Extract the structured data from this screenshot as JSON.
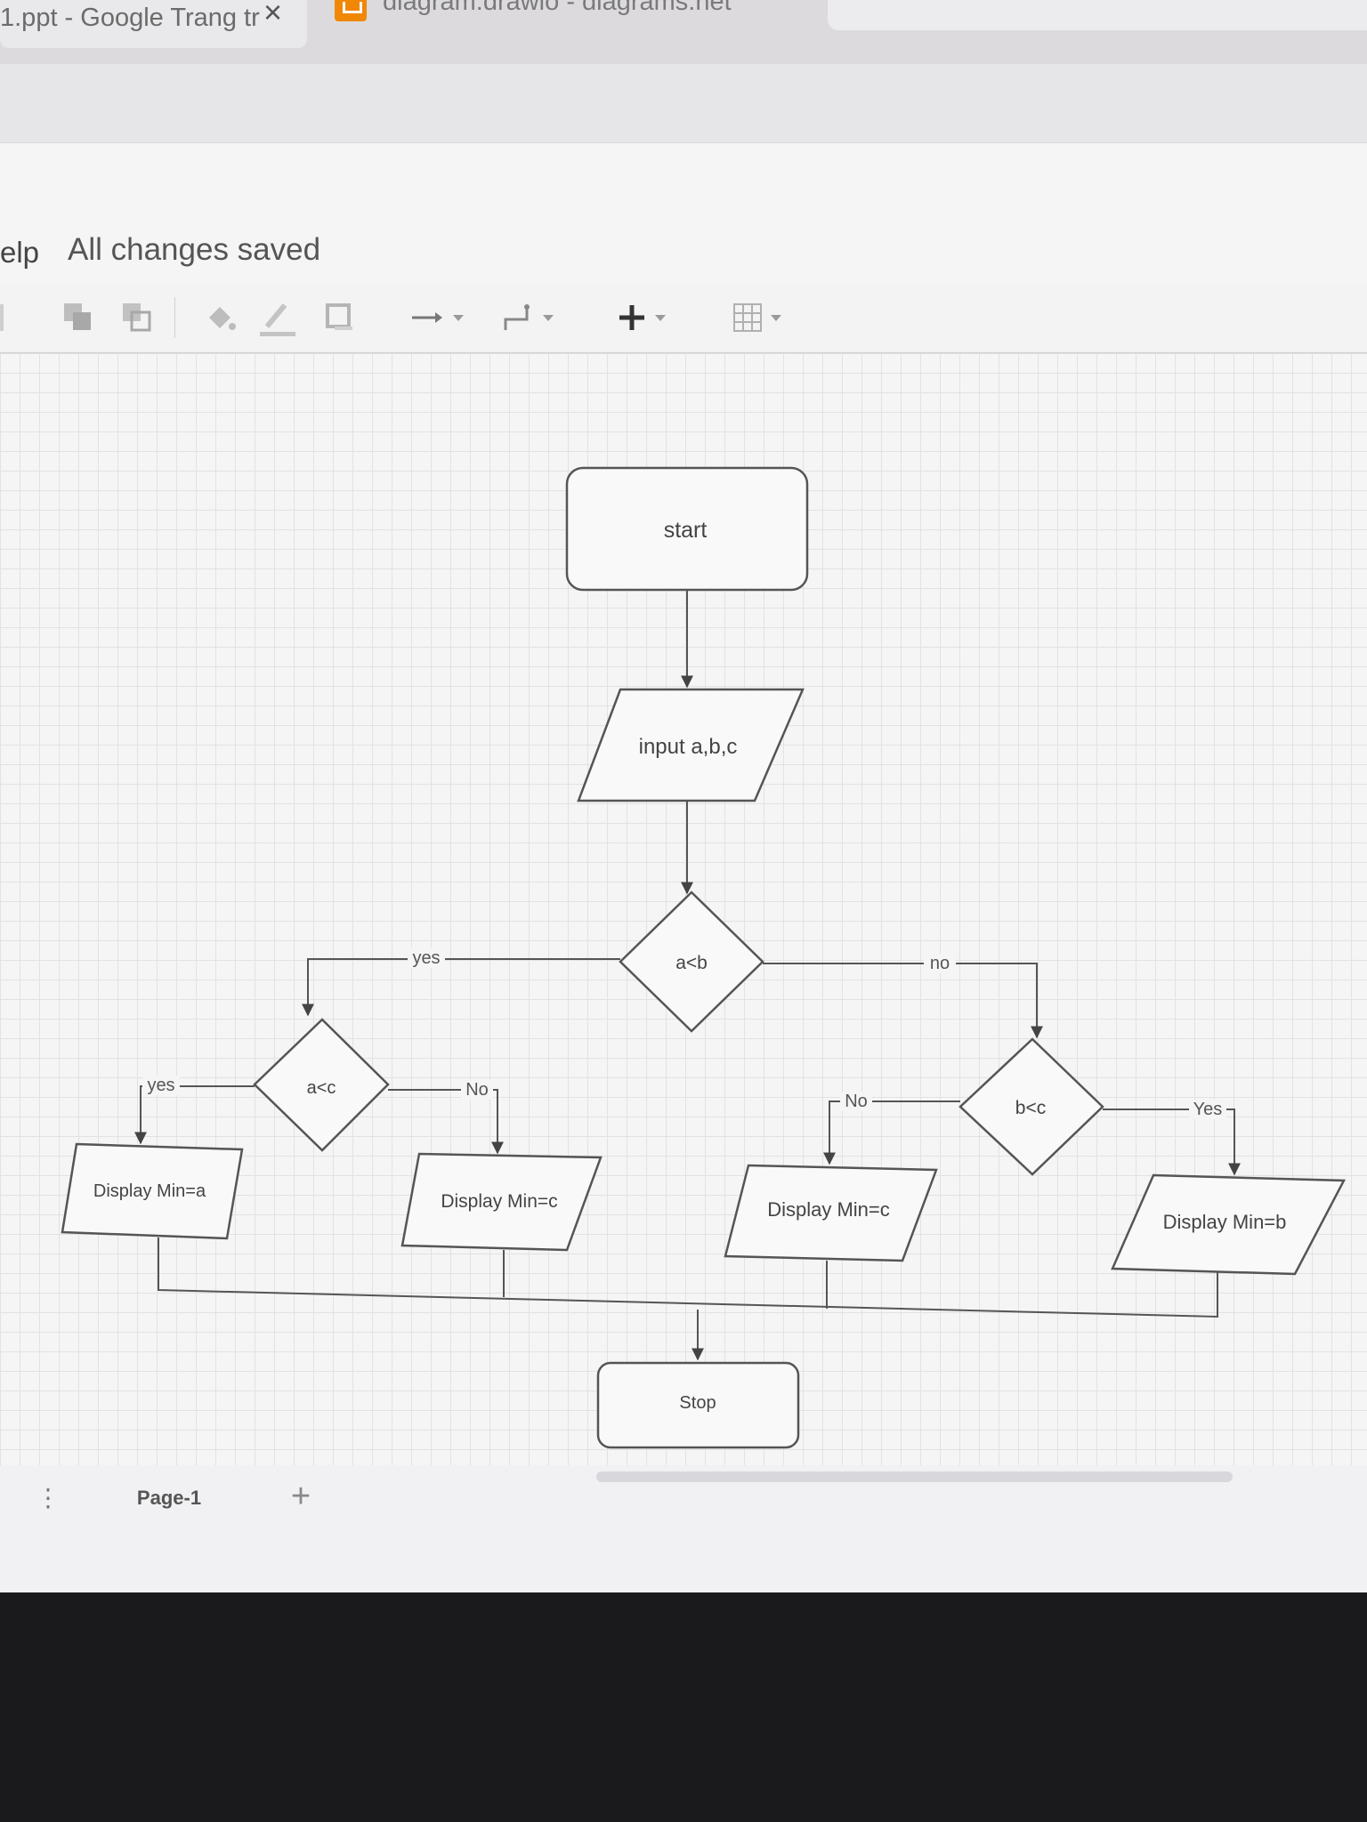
{
  "browser": {
    "tabs": [
      {
        "title": "1.ppt - Google Trang tr",
        "close_icon": "close-icon"
      },
      {
        "title": "diagram.drawio - diagrams.net",
        "favicon": "drawio-icon"
      }
    ]
  },
  "menubar": {
    "help_label": "elp",
    "save_status": "All changes saved"
  },
  "toolbar": {
    "icons": [
      "duplicate-icon",
      "to-back-icon",
      "fill-color-icon",
      "line-color-icon",
      "shadow-icon",
      "connection-arrow-icon",
      "waypoints-icon",
      "insert-icon",
      "table-icon"
    ]
  },
  "diagram": {
    "nodes": {
      "start": "start",
      "input": "input a,b,c",
      "cond_ab": "a<b",
      "cond_ac": "a<c",
      "cond_bc": "b<c",
      "out_a": "Display Min=a",
      "out_c1": "Display Min=c",
      "out_c2": "Display Min=c",
      "out_b": "Display Min=b",
      "stop": "Stop"
    },
    "edges": {
      "ab_yes": "yes",
      "ab_no": "no",
      "ac_yes": "yes",
      "ac_no": "No",
      "bc_no": "No",
      "bc_yes": "Yes"
    }
  },
  "pages": {
    "tabs": [
      "Page-1"
    ],
    "add_icon": "add-page-icon",
    "menu_icon": "more-vertical-icon"
  },
  "colors": {
    "shape_stroke": "#555555",
    "shape_fill": "#f9f9f9",
    "grid": "#e2e2e2"
  }
}
